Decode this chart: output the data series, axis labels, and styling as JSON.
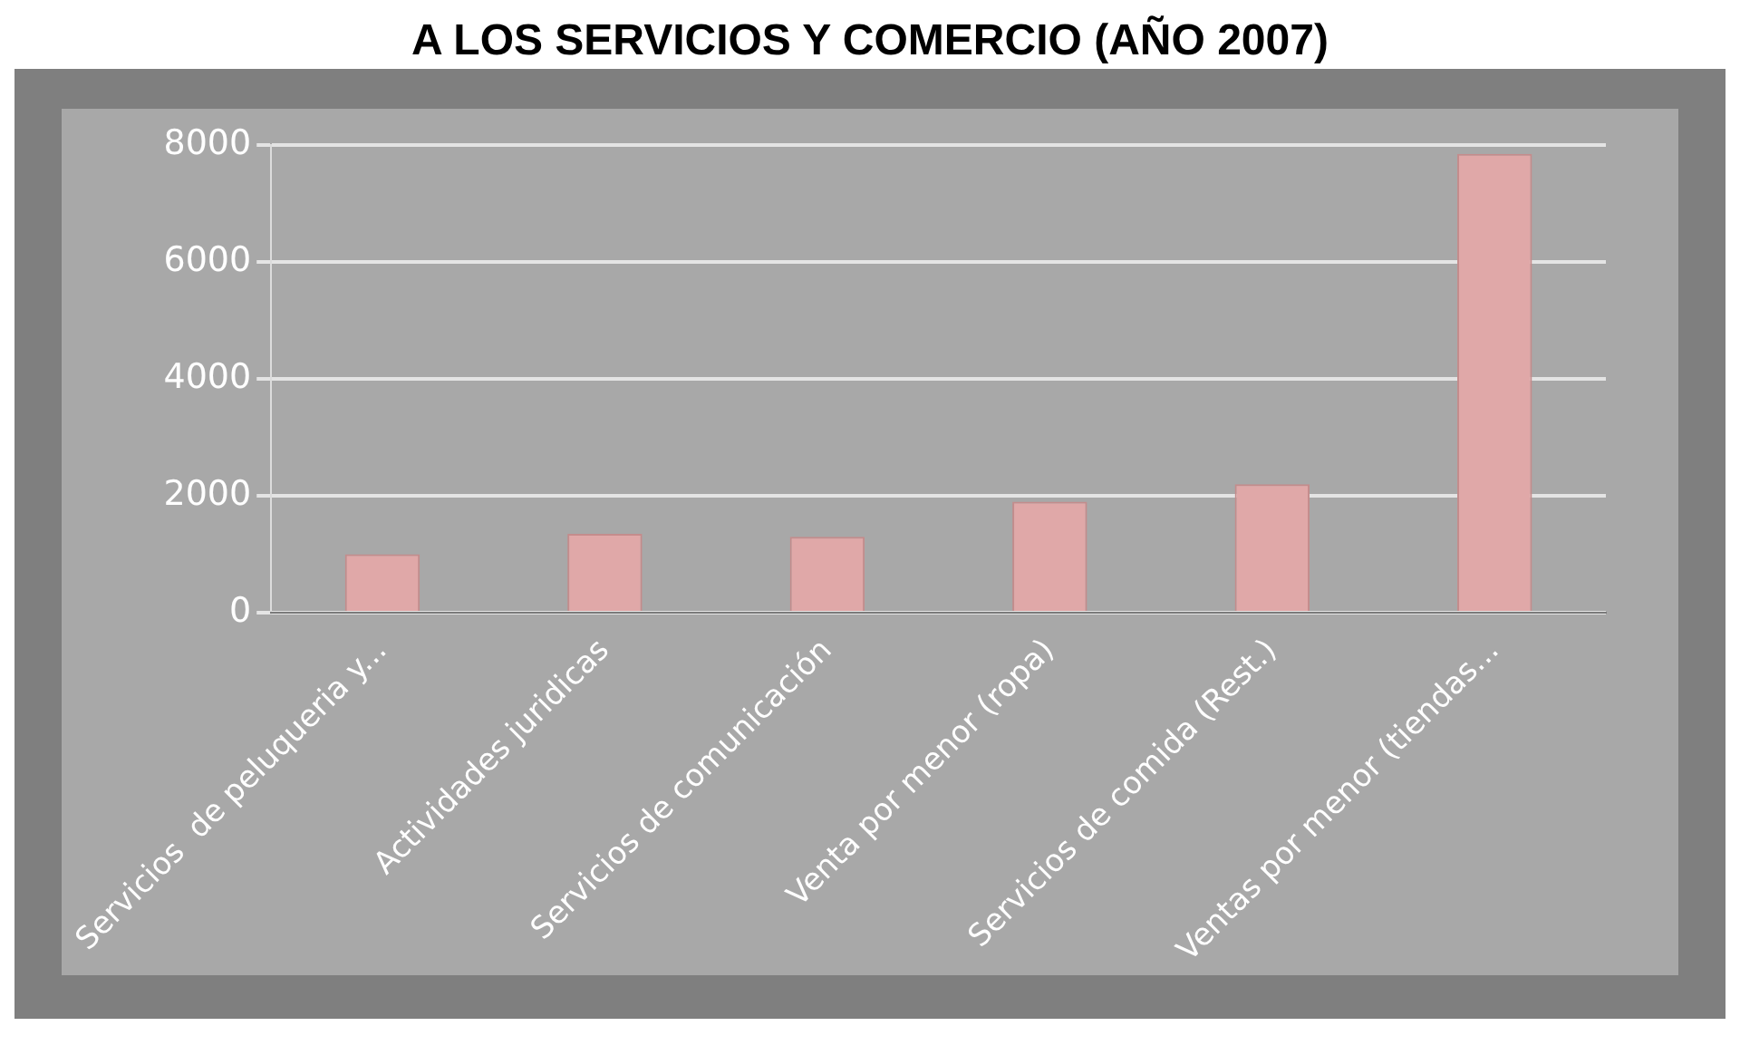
{
  "chart_data": {
    "type": "bar",
    "title": "A LOS SERVICIOS Y COMERCIO (AÑO 2007)",
    "categories": [
      "Servicios  de peluqueria y...",
      "Actividades juridicas",
      "Servicios de comunicación",
      "Venta por menor (ropa)",
      "Servicios de comida (Rest.)",
      "Ventas por menor (tiendas..."
    ],
    "values": [
      1000,
      1350,
      1300,
      1900,
      2200,
      7850
    ],
    "color": "#e0a8a8",
    "ylim": [
      0,
      8000
    ],
    "yticks": [
      0,
      2000,
      4000,
      6000,
      8000
    ],
    "grid": "y"
  }
}
